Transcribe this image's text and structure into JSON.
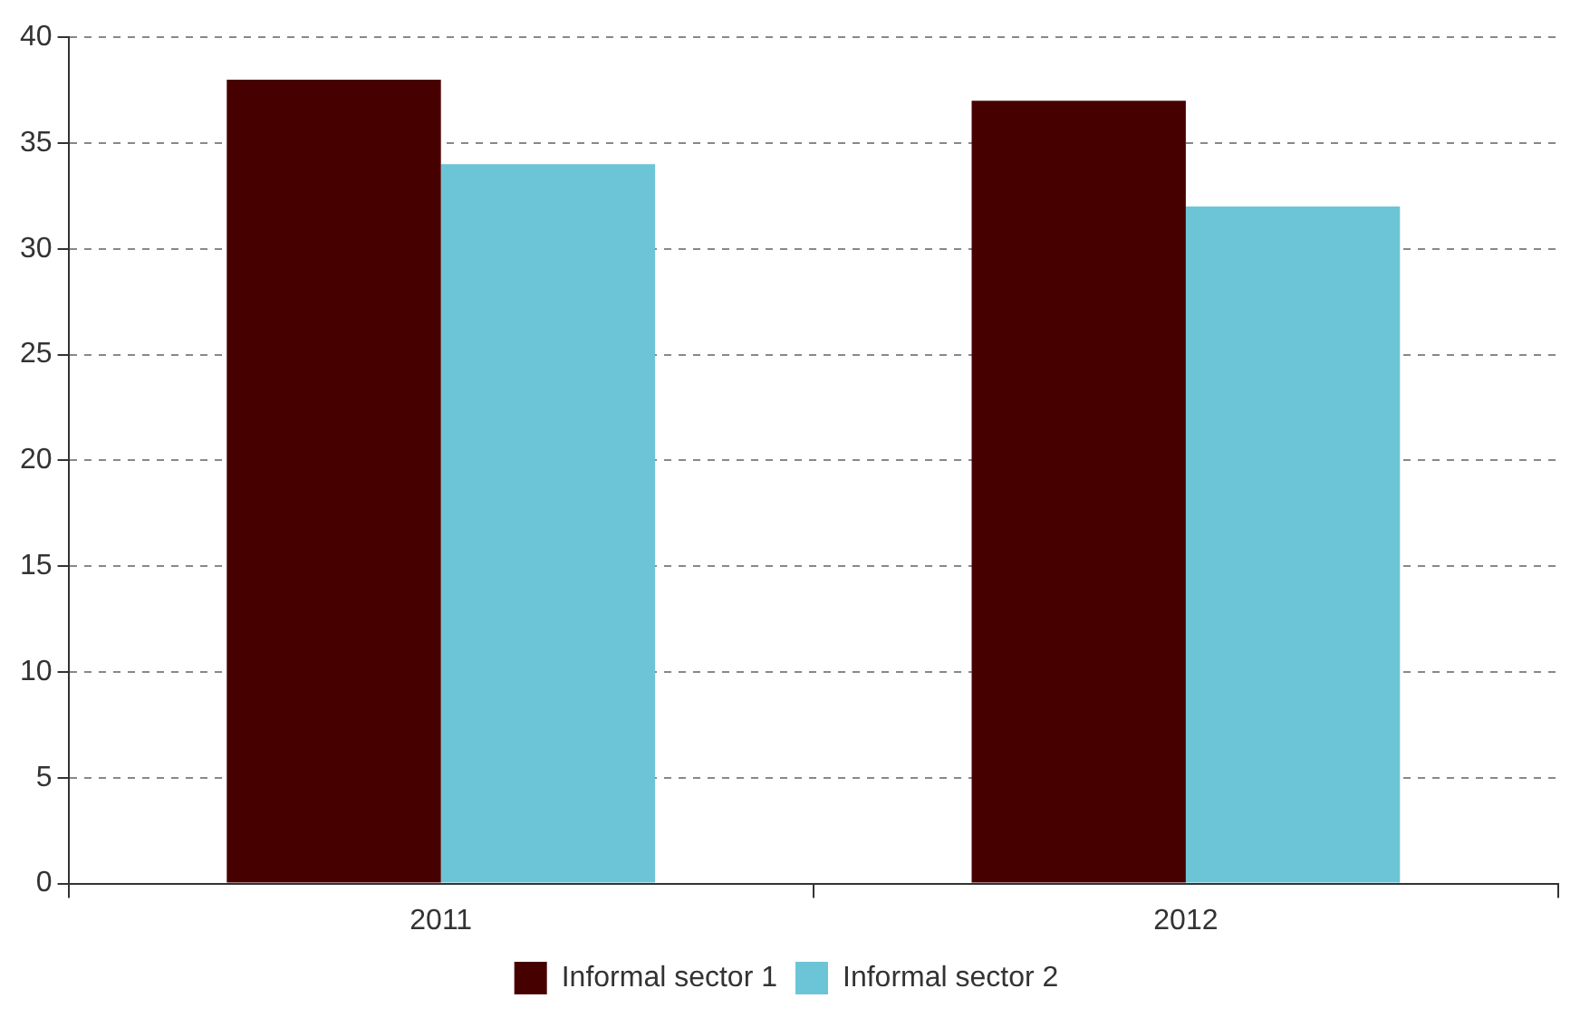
{
  "chart_data": {
    "type": "bar",
    "categories": [
      "2011",
      "2012"
    ],
    "series": [
      {
        "name": "Informal sector 1",
        "color": "#470000",
        "values": [
          38,
          37
        ]
      },
      {
        "name": "Informal sector 2",
        "color": "#6cc5d7",
        "values": [
          34,
          32
        ]
      }
    ],
    "ylim": [
      0,
      40
    ],
    "yticks": [
      0,
      5,
      10,
      15,
      20,
      25,
      30,
      35,
      40
    ],
    "grid": "y",
    "legend": "bottom"
  }
}
